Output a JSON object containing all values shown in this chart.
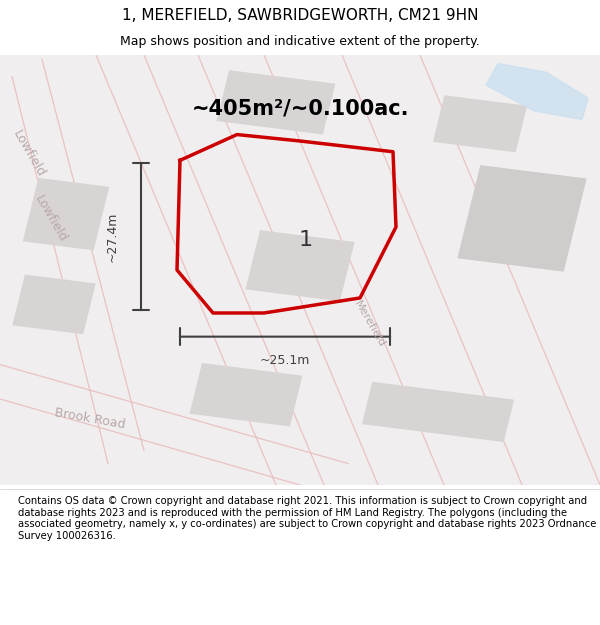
{
  "title": "1, MEREFIELD, SAWBRIDGEWORTH, CM21 9HN",
  "subtitle": "Map shows position and indicative extent of the property.",
  "area_label": "~405m²/~0.100ac.",
  "plot_number": "1",
  "dim_horizontal": "~25.1m",
  "dim_vertical": "~27.4m",
  "footer": "Contains OS data © Crown copyright and database right 2021. This information is subject to Crown copyright and database rights 2023 and is reproduced with the permission of HM Land Registry. The polygons (including the associated geometry, namely x, y co-ordinates) are subject to Crown copyright and database rights 2023 Ordnance Survey 100026316.",
  "bg_color": "#f0eeee",
  "building_color": "#d8d4d4",
  "road_line_color": "#e8b8b8",
  "plot_outline_color": "#cc0000",
  "dim_line_color": "#404040",
  "street_label_color": "#b8a8a8",
  "water_color": "#c8dff0",
  "title_color": "#000000",
  "text_color": "#000000",
  "footer_color": "#000000"
}
